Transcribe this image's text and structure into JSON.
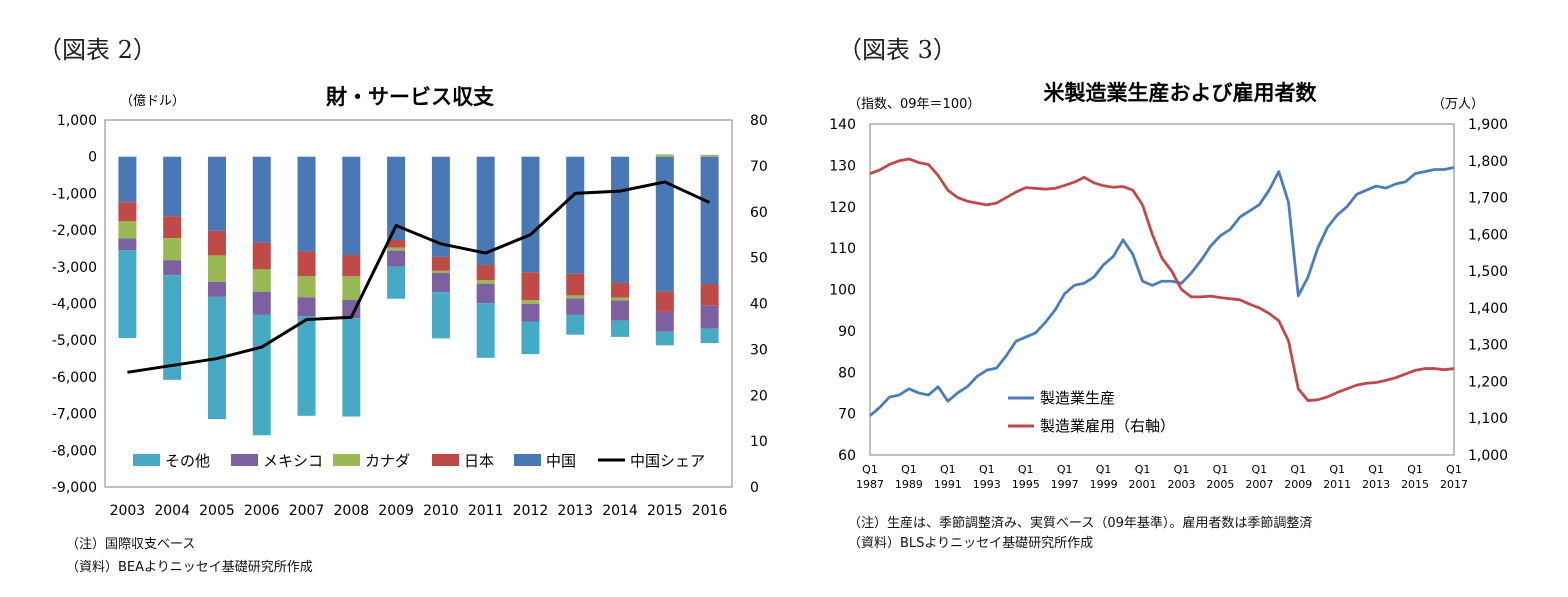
{
  "figure_labels": {
    "left": "（図表 2）",
    "right": "（図表 3）"
  },
  "notes": {
    "left": [
      "（注）国際収支ベース",
      "（資料）BEAよりニッセイ基礎研究所作成"
    ],
    "right": [
      "（注）生産は、季節調整済み、実質ベース（09年基準）。雇用者数は季節調整済",
      "（資料）BLSよりニッセイ基礎研究所作成"
    ]
  },
  "chart_data": [
    {
      "type": "bar",
      "stacked": true,
      "title": "財・サービス収支",
      "ylabel": "（億ドル）",
      "y2label": "",
      "categories": [
        "2003",
        "2004",
        "2005",
        "2006",
        "2007",
        "2008",
        "2009",
        "2010",
        "2011",
        "2012",
        "2013",
        "2014",
        "2015",
        "2016"
      ],
      "ylim": [
        -9000,
        1000
      ],
      "yticks": [
        "1,000",
        "0",
        "-1,000",
        "-2,000",
        "-3,000",
        "-4,000",
        "-5,000",
        "-6,000",
        "-7,000",
        "-8,000",
        "-9,000"
      ],
      "y2lim": [
        0,
        80
      ],
      "y2ticks": [
        "80",
        "70",
        "60",
        "50",
        "40",
        "30",
        "20",
        "10",
        "0"
      ],
      "series": [
        {
          "name": "中国",
          "color": "#4A78B5",
          "values": [
            -1240,
            -1620,
            -2020,
            -2340,
            -2580,
            -2680,
            -2270,
            -2730,
            -2950,
            -3150,
            -3190,
            -3440,
            -3670,
            -3470
          ]
        },
        {
          "name": "日本",
          "color": "#BE4B48",
          "values": [
            -520,
            -600,
            -670,
            -730,
            -680,
            -580,
            -210,
            -380,
            -410,
            -760,
            -590,
            -400,
            -560,
            -590
          ]
        },
        {
          "name": "カナダ",
          "color": "#98B954",
          "values": [
            -470,
            -600,
            -720,
            -610,
            -570,
            -640,
            -80,
            -60,
            -100,
            -100,
            -80,
            -80,
            60,
            50
          ]
        },
        {
          "name": "メキシコ",
          "color": "#7D60A0",
          "values": [
            -320,
            -410,
            -410,
            -620,
            -520,
            -500,
            -430,
            -520,
            -530,
            -480,
            -450,
            -550,
            -540,
            -620
          ]
        },
        {
          "name": "その他",
          "color": "#46AAC5",
          "values": [
            -2390,
            -2850,
            -3330,
            -3290,
            -2710,
            -2680,
            -880,
            -1260,
            -1490,
            -890,
            -540,
            -440,
            -370,
            -400
          ]
        }
      ],
      "line": {
        "name": "中国シェア",
        "color": "#000000",
        "values": [
          25,
          26.5,
          28,
          30.5,
          36.5,
          37,
          57,
          53,
          51,
          55,
          64,
          64.5,
          66.5,
          62
        ]
      },
      "legend": [
        "その他",
        "メキシコ",
        "カナダ",
        "日本",
        "中国",
        "中国シェア"
      ]
    },
    {
      "type": "line",
      "title": "米製造業生産および雇用者数",
      "ylabel": "（指数、09年＝100）",
      "y2label": "（万人）",
      "ylim": [
        60,
        140
      ],
      "yticks": [
        "140",
        "130",
        "120",
        "110",
        "100",
        "90",
        "80",
        "70",
        "60"
      ],
      "y2lim": [
        1000,
        1900
      ],
      "y2ticks": [
        "1,900",
        "1,800",
        "1,700",
        "1,600",
        "1,500",
        "1,400",
        "1,300",
        "1,200",
        "1,100",
        "1,000"
      ],
      "xlim": [
        1987,
        2017
      ],
      "xtick_labels": [
        [
          "Q1",
          "1987"
        ],
        [
          "Q1",
          "1989"
        ],
        [
          "Q1",
          "1991"
        ],
        [
          "Q1",
          "1993"
        ],
        [
          "Q1",
          "1995"
        ],
        [
          "Q1",
          "1997"
        ],
        [
          "Q1",
          "1999"
        ],
        [
          "Q1",
          "2001"
        ],
        [
          "Q1",
          "2003"
        ],
        [
          "Q1",
          "2005"
        ],
        [
          "Q1",
          "2007"
        ],
        [
          "Q1",
          "2009"
        ],
        [
          "Q1",
          "2011"
        ],
        [
          "Q1",
          "2013"
        ],
        [
          "Q1",
          "2015"
        ],
        [
          "Q1",
          "2017"
        ]
      ],
      "series": [
        {
          "name": "製造業生産",
          "axis": "left",
          "color": "#4A7EBB",
          "x": [
            1987,
            1987.5,
            1988,
            1988.5,
            1989,
            1989.5,
            1990,
            1990.5,
            1991,
            1991.5,
            1992,
            1992.5,
            1993,
            1993.5,
            1994,
            1994.5,
            1995,
            1995.5,
            1996,
            1996.5,
            1997,
            1997.5,
            1998,
            1998.5,
            1999,
            1999.5,
            2000,
            2000.5,
            2001,
            2001.5,
            2002,
            2002.5,
            2003,
            2003.5,
            2004,
            2004.5,
            2005,
            2005.5,
            2006,
            2006.5,
            2007,
            2007.5,
            2008,
            2008.5,
            2009,
            2009.5,
            2010,
            2010.5,
            2011,
            2011.5,
            2012,
            2012.5,
            2013,
            2013.5,
            2014,
            2014.5,
            2015,
            2015.5,
            2016,
            2016.5,
            2017
          ],
          "y": [
            69.5,
            71.5,
            74,
            74.5,
            76,
            75,
            74.5,
            76.5,
            73,
            75,
            76.5,
            79,
            80.5,
            81,
            84,
            87.5,
            88.5,
            89.5,
            92,
            95,
            99,
            101,
            101.5,
            103,
            106,
            108,
            112,
            108.5,
            102,
            101,
            102,
            102,
            101.5,
            104,
            107,
            110.5,
            113,
            114.5,
            117.5,
            119,
            120.5,
            124,
            128.5,
            121,
            98.5,
            103,
            110,
            115,
            118,
            120,
            123,
            124,
            125,
            124.5,
            125.5,
            126,
            128,
            128.5,
            129,
            129,
            129.5
          ]
        },
        {
          "name": "製造業雇用（右軸）",
          "axis": "right",
          "color": "#BE4B48",
          "x": [
            1987,
            1987.5,
            1988,
            1988.5,
            1989,
            1989.5,
            1990,
            1990.5,
            1991,
            1991.5,
            1992,
            1992.5,
            1993,
            1993.5,
            1994,
            1994.5,
            1995,
            1995.5,
            1996,
            1996.5,
            1997,
            1997.5,
            1998,
            1998.5,
            1999,
            1999.5,
            2000,
            2000.5,
            2001,
            2001.5,
            2002,
            2002.5,
            2003,
            2003.5,
            2004,
            2004.5,
            2005,
            2005.5,
            2006,
            2006.5,
            2007,
            2007.5,
            2008,
            2008.5,
            2009,
            2009.5,
            2010,
            2010.5,
            2011,
            2011.5,
            2012,
            2012.5,
            2013,
            2013.5,
            2014,
            2014.5,
            2015,
            2015.5,
            2016,
            2016.5,
            2017
          ],
          "y": [
            1765,
            1775,
            1790,
            1800,
            1805,
            1795,
            1790,
            1760,
            1720,
            1700,
            1690,
            1685,
            1680,
            1685,
            1700,
            1715,
            1727,
            1725,
            1723,
            1725,
            1733,
            1742,
            1755,
            1740,
            1732,
            1728,
            1730,
            1720,
            1680,
            1600,
            1535,
            1500,
            1450,
            1430,
            1430,
            1432,
            1428,
            1425,
            1422,
            1410,
            1400,
            1385,
            1365,
            1310,
            1180,
            1148,
            1150,
            1158,
            1170,
            1180,
            1190,
            1195,
            1197,
            1203,
            1210,
            1220,
            1230,
            1235,
            1235,
            1232,
            1235
          ]
        }
      ],
      "legend": [
        "製造業生産",
        "製造業雇用（右軸）"
      ]
    }
  ]
}
